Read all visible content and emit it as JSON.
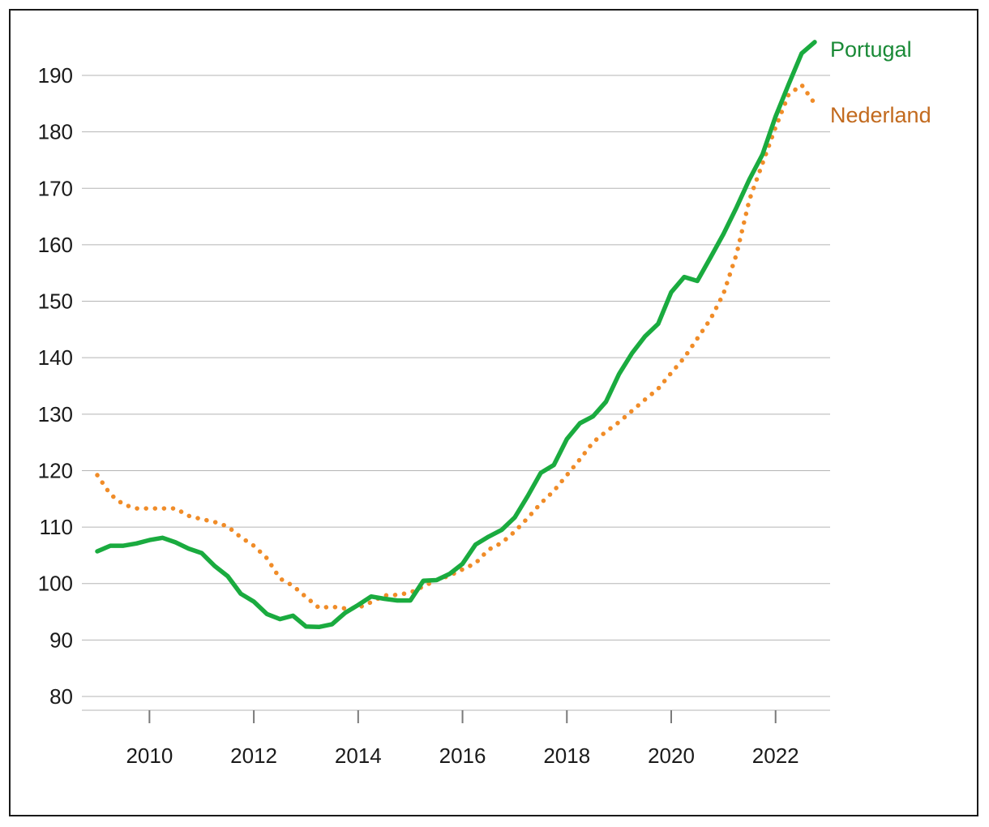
{
  "chart_data": {
    "type": "line",
    "title": "",
    "xlabel": "",
    "ylabel": "",
    "xlim": [
      2009.0,
      2022.75
    ],
    "ylim": [
      80,
      196
    ],
    "grid": true,
    "legend": "end-of-line labels, right",
    "x_ticks": [
      2010,
      2012,
      2014,
      2016,
      2018,
      2020,
      2022
    ],
    "x_tick_labels": [
      "2010",
      "2012",
      "2014",
      "2016",
      "2018",
      "2020",
      "2022"
    ],
    "y_ticks": [
      80,
      90,
      100,
      110,
      120,
      130,
      140,
      150,
      160,
      170,
      180,
      190
    ],
    "y_tick_labels": [
      "80",
      "90",
      "100",
      "110",
      "120",
      "130",
      "140",
      "150",
      "160",
      "170",
      "180",
      "190"
    ],
    "x": [
      2009.0,
      2009.25,
      2009.5,
      2009.75,
      2010.0,
      2010.25,
      2010.5,
      2010.75,
      2011.0,
      2011.25,
      2011.5,
      2011.75,
      2012.0,
      2012.25,
      2012.5,
      2012.75,
      2013.0,
      2013.25,
      2013.5,
      2013.75,
      2014.0,
      2014.25,
      2014.5,
      2014.75,
      2015.0,
      2015.25,
      2015.5,
      2015.75,
      2016.0,
      2016.25,
      2016.5,
      2016.75,
      2017.0,
      2017.25,
      2017.5,
      2017.75,
      2018.0,
      2018.25,
      2018.5,
      2018.75,
      2019.0,
      2019.25,
      2019.5,
      2019.75,
      2020.0,
      2020.25,
      2020.5,
      2020.75,
      2021.0,
      2021.25,
      2021.5,
      2021.75,
      2022.0,
      2022.25,
      2022.5,
      2022.75
    ],
    "series": [
      {
        "name": "Portugal",
        "color": "#1aab3f",
        "style": "solid",
        "values": [
          105.7,
          106.7,
          106.7,
          107.1,
          107.7,
          108.1,
          107.3,
          106.2,
          105.4,
          103.1,
          101.3,
          98.2,
          96.8,
          94.6,
          93.7,
          94.3,
          92.4,
          92.3,
          92.8,
          94.8,
          96.2,
          97.7,
          97.3,
          97.0,
          97.0,
          100.5,
          100.6,
          101.7,
          103.5,
          106.9,
          108.3,
          109.5,
          111.7,
          115.5,
          119.6,
          121.0,
          125.6,
          128.4,
          129.6,
          132.2,
          137.1,
          140.8,
          143.8,
          146.0,
          151.6,
          154.3,
          153.6,
          157.7,
          161.9,
          166.6,
          171.6,
          176.0,
          182.7,
          188.4,
          193.9,
          195.9
        ]
      },
      {
        "name": "Nederland",
        "color": "#f08c28",
        "style": "dotted",
        "values": [
          119.2,
          115.8,
          114.0,
          113.3,
          113.3,
          113.3,
          113.3,
          112.0,
          111.4,
          110.9,
          110.1,
          108.2,
          106.7,
          104.5,
          100.9,
          99.6,
          97.6,
          95.7,
          95.9,
          95.6,
          95.7,
          96.7,
          97.9,
          98.0,
          98.4,
          99.5,
          100.6,
          101.4,
          102.5,
          103.6,
          106.0,
          107.2,
          109.2,
          111.6,
          114.2,
          116.4,
          119.2,
          122.0,
          125.0,
          126.9,
          128.6,
          130.6,
          132.6,
          134.5,
          137.3,
          140.0,
          143.4,
          146.8,
          151.3,
          158.3,
          168.0,
          174.4,
          180.8,
          186.6,
          188.3,
          185.0
        ]
      }
    ]
  }
}
